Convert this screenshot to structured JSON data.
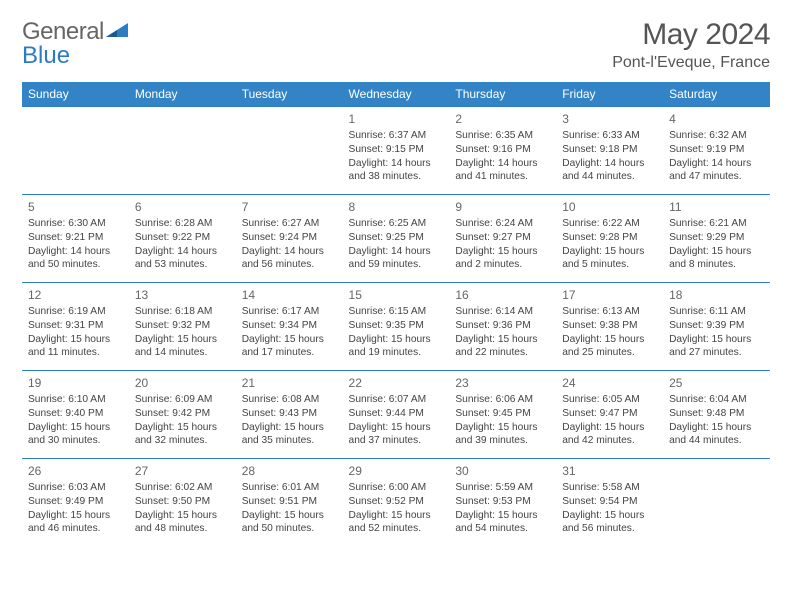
{
  "brand": {
    "text1": "General",
    "text2": "Blue"
  },
  "title": "May 2024",
  "location": "Pont-l'Eveque, France",
  "colors": {
    "header_bg": "#3384c6",
    "header_text": "#ffffff",
    "border": "#2b7cc4",
    "text": "#444444",
    "title_text": "#555555"
  },
  "weekdays": [
    "Sunday",
    "Monday",
    "Tuesday",
    "Wednesday",
    "Thursday",
    "Friday",
    "Saturday"
  ],
  "calendar": {
    "first_weekday_index": 3,
    "days_in_month": 31
  },
  "days": {
    "1": {
      "sunrise": "6:37 AM",
      "sunset": "9:15 PM",
      "daylight": "14 hours and 38 minutes."
    },
    "2": {
      "sunrise": "6:35 AM",
      "sunset": "9:16 PM",
      "daylight": "14 hours and 41 minutes."
    },
    "3": {
      "sunrise": "6:33 AM",
      "sunset": "9:18 PM",
      "daylight": "14 hours and 44 minutes."
    },
    "4": {
      "sunrise": "6:32 AM",
      "sunset": "9:19 PM",
      "daylight": "14 hours and 47 minutes."
    },
    "5": {
      "sunrise": "6:30 AM",
      "sunset": "9:21 PM",
      "daylight": "14 hours and 50 minutes."
    },
    "6": {
      "sunrise": "6:28 AM",
      "sunset": "9:22 PM",
      "daylight": "14 hours and 53 minutes."
    },
    "7": {
      "sunrise": "6:27 AM",
      "sunset": "9:24 PM",
      "daylight": "14 hours and 56 minutes."
    },
    "8": {
      "sunrise": "6:25 AM",
      "sunset": "9:25 PM",
      "daylight": "14 hours and 59 minutes."
    },
    "9": {
      "sunrise": "6:24 AM",
      "sunset": "9:27 PM",
      "daylight": "15 hours and 2 minutes."
    },
    "10": {
      "sunrise": "6:22 AM",
      "sunset": "9:28 PM",
      "daylight": "15 hours and 5 minutes."
    },
    "11": {
      "sunrise": "6:21 AM",
      "sunset": "9:29 PM",
      "daylight": "15 hours and 8 minutes."
    },
    "12": {
      "sunrise": "6:19 AM",
      "sunset": "9:31 PM",
      "daylight": "15 hours and 11 minutes."
    },
    "13": {
      "sunrise": "6:18 AM",
      "sunset": "9:32 PM",
      "daylight": "15 hours and 14 minutes."
    },
    "14": {
      "sunrise": "6:17 AM",
      "sunset": "9:34 PM",
      "daylight": "15 hours and 17 minutes."
    },
    "15": {
      "sunrise": "6:15 AM",
      "sunset": "9:35 PM",
      "daylight": "15 hours and 19 minutes."
    },
    "16": {
      "sunrise": "6:14 AM",
      "sunset": "9:36 PM",
      "daylight": "15 hours and 22 minutes."
    },
    "17": {
      "sunrise": "6:13 AM",
      "sunset": "9:38 PM",
      "daylight": "15 hours and 25 minutes."
    },
    "18": {
      "sunrise": "6:11 AM",
      "sunset": "9:39 PM",
      "daylight": "15 hours and 27 minutes."
    },
    "19": {
      "sunrise": "6:10 AM",
      "sunset": "9:40 PM",
      "daylight": "15 hours and 30 minutes."
    },
    "20": {
      "sunrise": "6:09 AM",
      "sunset": "9:42 PM",
      "daylight": "15 hours and 32 minutes."
    },
    "21": {
      "sunrise": "6:08 AM",
      "sunset": "9:43 PM",
      "daylight": "15 hours and 35 minutes."
    },
    "22": {
      "sunrise": "6:07 AM",
      "sunset": "9:44 PM",
      "daylight": "15 hours and 37 minutes."
    },
    "23": {
      "sunrise": "6:06 AM",
      "sunset": "9:45 PM",
      "daylight": "15 hours and 39 minutes."
    },
    "24": {
      "sunrise": "6:05 AM",
      "sunset": "9:47 PM",
      "daylight": "15 hours and 42 minutes."
    },
    "25": {
      "sunrise": "6:04 AM",
      "sunset": "9:48 PM",
      "daylight": "15 hours and 44 minutes."
    },
    "26": {
      "sunrise": "6:03 AM",
      "sunset": "9:49 PM",
      "daylight": "15 hours and 46 minutes."
    },
    "27": {
      "sunrise": "6:02 AM",
      "sunset": "9:50 PM",
      "daylight": "15 hours and 48 minutes."
    },
    "28": {
      "sunrise": "6:01 AM",
      "sunset": "9:51 PM",
      "daylight": "15 hours and 50 minutes."
    },
    "29": {
      "sunrise": "6:00 AM",
      "sunset": "9:52 PM",
      "daylight": "15 hours and 52 minutes."
    },
    "30": {
      "sunrise": "5:59 AM",
      "sunset": "9:53 PM",
      "daylight": "15 hours and 54 minutes."
    },
    "31": {
      "sunrise": "5:58 AM",
      "sunset": "9:54 PM",
      "daylight": "15 hours and 56 minutes."
    }
  },
  "labels": {
    "sunrise": "Sunrise:",
    "sunset": "Sunset:",
    "daylight": "Daylight:"
  }
}
